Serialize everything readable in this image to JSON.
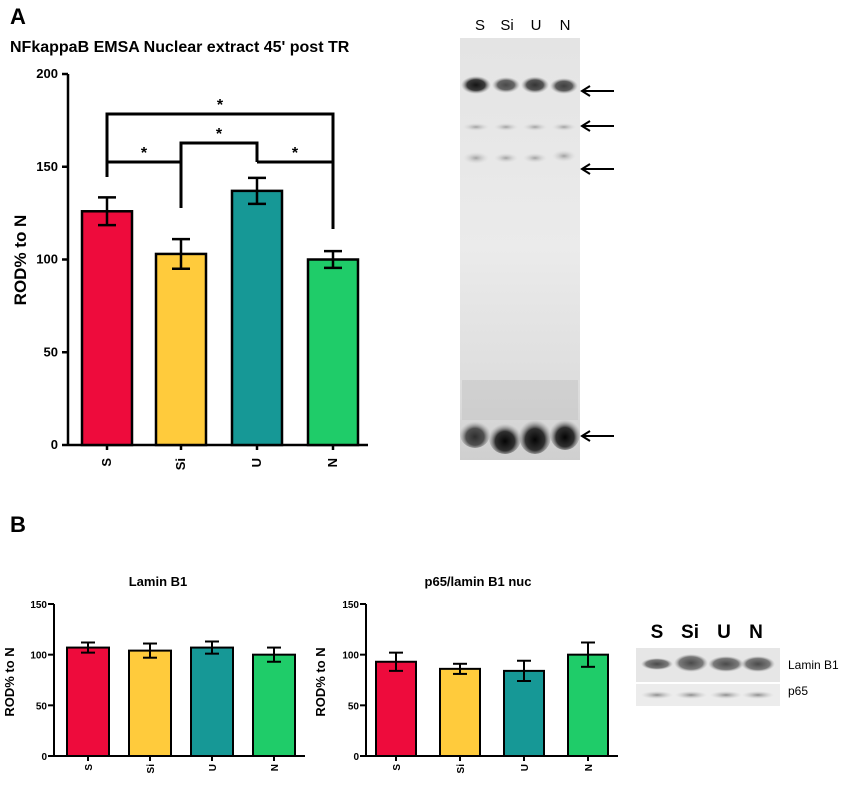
{
  "figure": {
    "panel_a_letter": "A",
    "panel_b_letter": "B"
  },
  "chart_data": [
    {
      "type": "bar",
      "title": "NFkappaB EMSA Nuclear extract 45' post TR",
      "xlabel": "",
      "ylabel": "ROD% to N",
      "categories": [
        "S",
        "Si",
        "U",
        "N"
      ],
      "values": [
        126,
        103,
        137,
        100
      ],
      "errors": [
        7.5,
        8,
        7,
        4.5
      ],
      "colors": [
        "#ee0b3c",
        "#ffcb3c",
        "#169896",
        "#1fcc69"
      ],
      "ylim": [
        0,
        200
      ],
      "yticks": [
        0,
        50,
        100,
        150,
        200
      ],
      "grid": false,
      "significance": [
        {
          "from": 0,
          "to": 1,
          "label": "*"
        },
        {
          "from": 1,
          "to": 2,
          "label": "*"
        },
        {
          "from": 2,
          "to": 3,
          "label": "*"
        },
        {
          "from": 0,
          "to": 3,
          "label": "*"
        }
      ]
    },
    {
      "type": "bar",
      "title": "Lamin B1",
      "xlabel": "",
      "ylabel": "ROD% to N",
      "categories": [
        "S",
        "Si",
        "U",
        "N"
      ],
      "values": [
        107,
        104,
        107,
        100
      ],
      "errors": [
        5,
        7,
        6,
        7
      ],
      "colors": [
        "#ee0b3c",
        "#ffcb3c",
        "#169896",
        "#1fcc69"
      ],
      "ylim": [
        0,
        150
      ],
      "yticks": [
        0,
        50,
        100,
        150
      ],
      "grid": false
    },
    {
      "type": "bar",
      "title": "p65/lamin B1 nuc",
      "xlabel": "",
      "ylabel": "ROD% to N",
      "categories": [
        "S",
        "Si",
        "U",
        "N"
      ],
      "values": [
        93,
        86,
        84,
        100
      ],
      "errors": [
        9,
        5,
        10,
        12
      ],
      "colors": [
        "#ee0b3c",
        "#ffcb3c",
        "#169896",
        "#1fcc69"
      ],
      "ylim": [
        0,
        150
      ],
      "yticks": [
        0,
        50,
        100,
        150
      ],
      "grid": false
    }
  ],
  "emsa_gel": {
    "lanes": [
      "S",
      "Si",
      "U",
      "N"
    ],
    "arrow_count": 4
  },
  "western_blot": {
    "lanes": [
      "S",
      "Si",
      "U",
      "N"
    ],
    "band_labels": [
      "Lamin B1",
      "p65"
    ]
  }
}
